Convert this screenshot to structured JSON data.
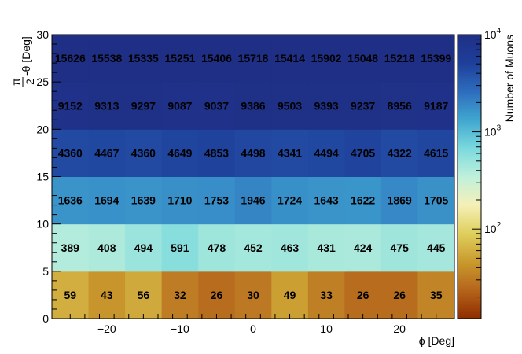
{
  "chart_data": {
    "type": "heatmap",
    "xlabel": "ϕ [Deg]",
    "ylabel_parts": {
      "num": "π",
      "den": "2",
      "rest": "-θ [Deg]"
    },
    "colorbar_label": "Number of Muons",
    "x_edges": [
      -27.5,
      -22.5,
      -17.5,
      -12.5,
      -7.5,
      -2.5,
      2.5,
      7.5,
      12.5,
      17.5,
      22.5,
      27.5
    ],
    "y_edges": [
      0,
      5,
      10,
      15,
      20,
      25,
      30
    ],
    "xlim": [
      -27.5,
      27.5
    ],
    "ylim": [
      0,
      30
    ],
    "x_ticks": [
      -20,
      -10,
      0,
      10,
      20
    ],
    "x_tick_labels": [
      "−20",
      "−10",
      "0",
      "10",
      "20"
    ],
    "y_ticks": [
      0,
      5,
      10,
      15,
      20,
      25,
      30
    ],
    "y_tick_labels": [
      "0",
      "5",
      "10",
      "15",
      "20",
      "25",
      "30"
    ],
    "z_scale": "log",
    "zlim": [
      12,
      10000
    ],
    "colorbar_ticks": [
      {
        "value": 100,
        "base": "10",
        "exp": "2"
      },
      {
        "value": 1000,
        "base": "10",
        "exp": "3"
      },
      {
        "value": 10000,
        "base": "10",
        "exp": "4"
      }
    ],
    "values": [
      [
        59,
        43,
        56,
        32,
        26,
        30,
        49,
        33,
        26,
        26,
        35
      ],
      [
        389,
        408,
        494,
        591,
        478,
        452,
        463,
        431,
        424,
        475,
        445
      ],
      [
        1636,
        1694,
        1639,
        1710,
        1753,
        1946,
        1724,
        1643,
        1622,
        1869,
        1705
      ],
      [
        4360,
        4467,
        4360,
        4649,
        4853,
        4498,
        4341,
        4494,
        4705,
        4322,
        4615
      ],
      [
        9152,
        9313,
        9297,
        9087,
        9037,
        9386,
        9503,
        9393,
        9237,
        8956,
        9187
      ],
      [
        15626,
        15538,
        15335,
        15251,
        15406,
        15718,
        15414,
        15902,
        15048,
        15218,
        15399
      ]
    ],
    "palette": [
      "#8f2d00",
      "#b5651b",
      "#c99a2e",
      "#dfcf5c",
      "#f5f0b8",
      "#bff0dc",
      "#7ad9dd",
      "#3fa6cf",
      "#2e6cbd",
      "#1e3f9a",
      "#1f2f85"
    ]
  }
}
